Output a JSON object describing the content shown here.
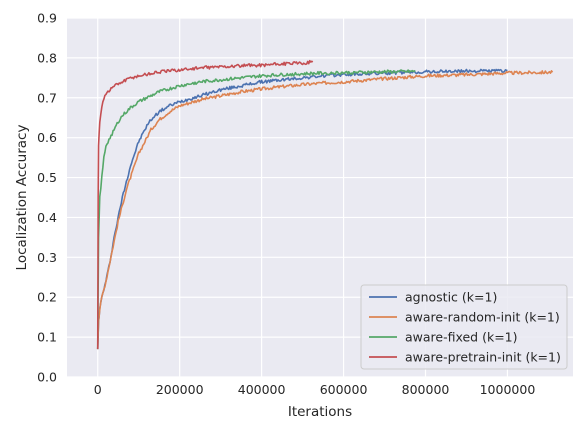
{
  "chart_data": {
    "type": "line",
    "xlabel": "Iterations",
    "ylabel": "Localization Accuracy",
    "xlim": [
      -75000,
      1160000
    ],
    "ylim": [
      0.0,
      0.9
    ],
    "xticks": [
      0,
      200000,
      400000,
      600000,
      800000,
      1000000
    ],
    "xtick_labels": [
      "0",
      "200000",
      "400000",
      "600000",
      "800000",
      "1000000"
    ],
    "yticks": [
      0.0,
      0.1,
      0.2,
      0.3,
      0.4,
      0.5,
      0.6,
      0.7,
      0.8,
      0.9
    ],
    "ytick_labels": [
      "0.0",
      "0.1",
      "0.2",
      "0.3",
      "0.4",
      "0.5",
      "0.6",
      "0.7",
      "0.8",
      "0.9"
    ],
    "grid": true,
    "legend_position": "lower-right",
    "series": [
      {
        "name": "agnostic (k=1)",
        "color": "#4c72b0",
        "x": [
          0,
          2000,
          5000,
          10000,
          20000,
          30000,
          40000,
          50000,
          60000,
          70000,
          80000,
          90000,
          100000,
          110000,
          120000,
          130000,
          150000,
          175000,
          200000,
          250000,
          300000,
          350000,
          400000,
          450000,
          500000,
          550000,
          600000,
          700000,
          800000,
          900000,
          1000000
        ],
        "y": [
          0.07,
          0.14,
          0.17,
          0.2,
          0.24,
          0.29,
          0.35,
          0.4,
          0.45,
          0.49,
          0.53,
          0.56,
          0.59,
          0.61,
          0.63,
          0.645,
          0.665,
          0.68,
          0.69,
          0.705,
          0.72,
          0.73,
          0.74,
          0.745,
          0.75,
          0.755,
          0.758,
          0.762,
          0.765,
          0.767,
          0.768
        ]
      },
      {
        "name": "aware-random-init (k=1)",
        "color": "#dd8452",
        "x": [
          0,
          2000,
          5000,
          10000,
          20000,
          30000,
          40000,
          50000,
          60000,
          70000,
          80000,
          90000,
          100000,
          110000,
          120000,
          130000,
          150000,
          175000,
          200000,
          250000,
          300000,
          350000,
          400000,
          450000,
          500000,
          550000,
          600000,
          700000,
          800000,
          900000,
          1000000,
          1110000
        ],
        "y": [
          0.07,
          0.14,
          0.17,
          0.2,
          0.24,
          0.29,
          0.34,
          0.39,
          0.43,
          0.47,
          0.5,
          0.53,
          0.56,
          0.58,
          0.6,
          0.62,
          0.645,
          0.665,
          0.68,
          0.695,
          0.705,
          0.715,
          0.722,
          0.728,
          0.733,
          0.737,
          0.74,
          0.748,
          0.755,
          0.758,
          0.762,
          0.764
        ]
      },
      {
        "name": "aware-fixed (k=1)",
        "color": "#55a868",
        "x": [
          0,
          2000,
          5000,
          10000,
          15000,
          20000,
          30000,
          40000,
          50000,
          60000,
          80000,
          100000,
          120000,
          150000,
          200000,
          250000,
          300000,
          350000,
          400000,
          450000,
          500000,
          550000,
          600000,
          650000,
          700000,
          775000
        ],
        "y": [
          0.07,
          0.35,
          0.45,
          0.5,
          0.55,
          0.58,
          0.6,
          0.62,
          0.64,
          0.655,
          0.675,
          0.69,
          0.7,
          0.715,
          0.73,
          0.74,
          0.745,
          0.75,
          0.755,
          0.758,
          0.76,
          0.762,
          0.763,
          0.764,
          0.765,
          0.766
        ]
      },
      {
        "name": "aware-pretrain-init (k=1)",
        "color": "#c44e52",
        "x": [
          0,
          1000,
          2000,
          5000,
          10000,
          15000,
          20000,
          30000,
          40000,
          50000,
          60000,
          80000,
          100000,
          125000,
          150000,
          200000,
          250000,
          300000,
          350000,
          400000,
          450000,
          500000,
          525000
        ],
        "y": [
          0.07,
          0.45,
          0.58,
          0.64,
          0.68,
          0.7,
          0.71,
          0.72,
          0.73,
          0.735,
          0.74,
          0.75,
          0.755,
          0.76,
          0.765,
          0.77,
          0.775,
          0.778,
          0.78,
          0.782,
          0.785,
          0.787,
          0.79
        ]
      }
    ]
  }
}
